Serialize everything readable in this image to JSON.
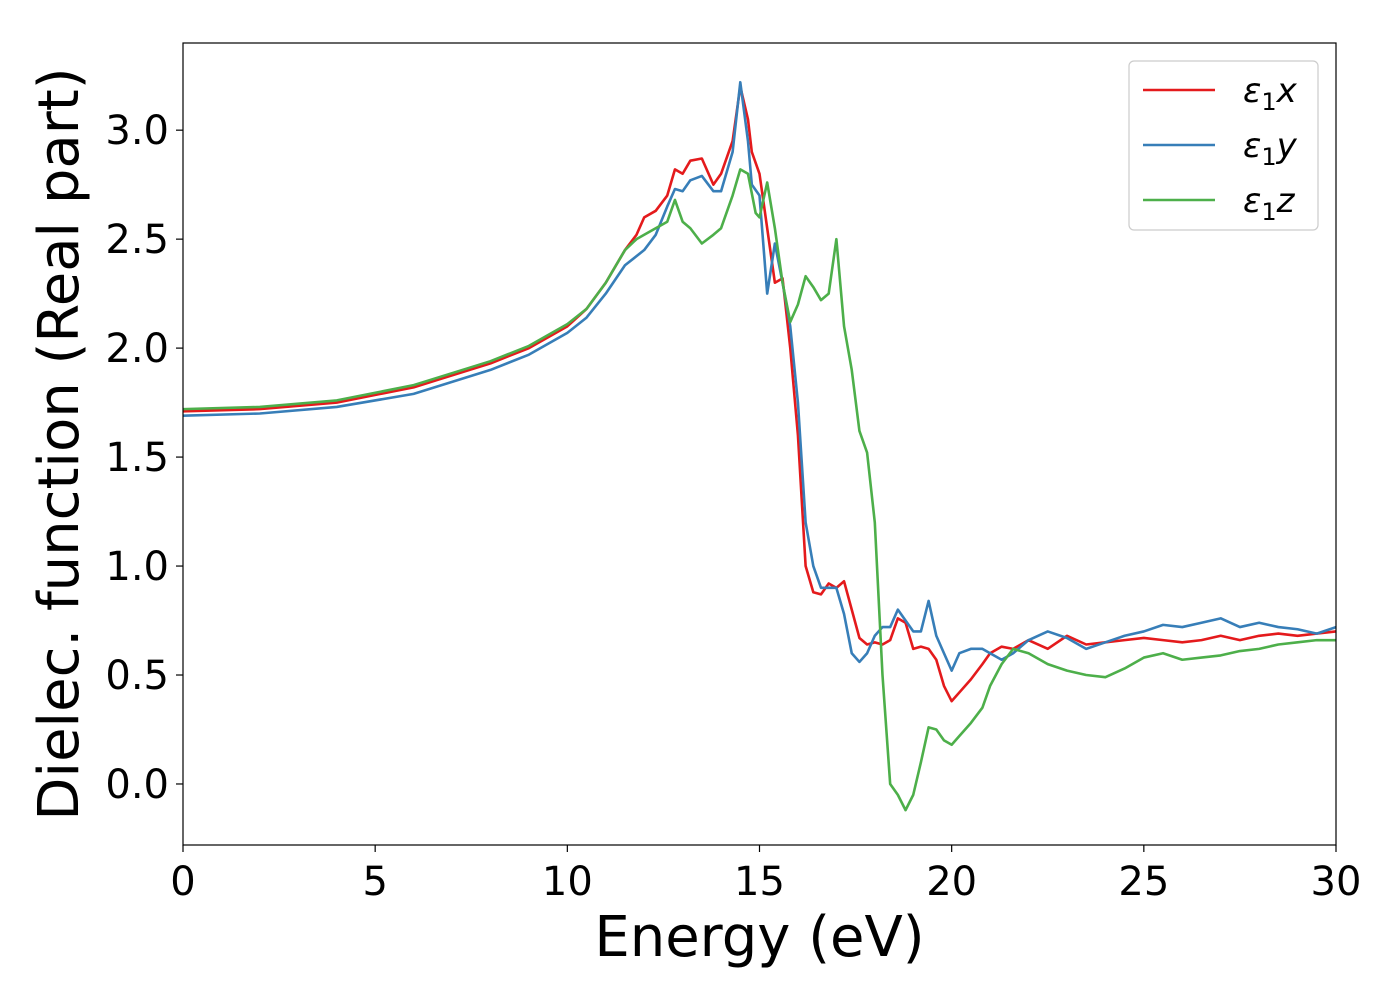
{
  "chart_data": {
    "type": "line",
    "title": "",
    "xlabel": "Energy (eV)",
    "ylabel": "Dielec. function (Real part)",
    "xlim": [
      0,
      30
    ],
    "ylim": [
      -0.28,
      3.4
    ],
    "xticks": [
      0,
      5,
      10,
      15,
      20,
      25,
      30
    ],
    "xtick_labels": [
      "0",
      "5",
      "10",
      "15",
      "20",
      "25",
      "30"
    ],
    "yticks": [
      0.0,
      0.5,
      1.0,
      1.5,
      2.0,
      2.5,
      3.0
    ],
    "ytick_labels": [
      "0.0",
      "0.5",
      "1.0",
      "1.5",
      "2.0",
      "2.5",
      "3.0"
    ],
    "grid": false,
    "legend_position": "top-right",
    "series": [
      {
        "name": "ε1x",
        "legend": {
          "base": "ε",
          "sub": "1",
          "suffix": "x"
        },
        "color": "#e41a1c",
        "x": [
          0,
          2,
          4,
          6,
          8,
          9,
          10,
          10.5,
          11,
          11.5,
          11.8,
          12.0,
          12.3,
          12.6,
          12.8,
          13.0,
          13.2,
          13.5,
          13.8,
          14.0,
          14.3,
          14.5,
          14.7,
          14.8,
          15.0,
          15.2,
          15.4,
          15.6,
          15.8,
          16.0,
          16.2,
          16.4,
          16.6,
          16.8,
          17.0,
          17.2,
          17.4,
          17.6,
          17.8,
          18.0,
          18.2,
          18.4,
          18.6,
          18.8,
          19.0,
          19.2,
          19.4,
          19.6,
          19.8,
          20.0,
          20.2,
          20.5,
          20.8,
          21.0,
          21.3,
          21.6,
          22.0,
          22.5,
          23.0,
          23.5,
          24.0,
          24.5,
          25.0,
          25.5,
          26.0,
          26.5,
          27.0,
          27.5,
          28.0,
          28.5,
          29.0,
          29.5,
          30.0
        ],
        "y": [
          1.71,
          1.72,
          1.75,
          1.82,
          1.93,
          2.0,
          2.1,
          2.18,
          2.3,
          2.45,
          2.52,
          2.6,
          2.63,
          2.7,
          2.82,
          2.8,
          2.86,
          2.87,
          2.75,
          2.8,
          2.95,
          3.2,
          3.05,
          2.9,
          2.8,
          2.55,
          2.3,
          2.32,
          2.0,
          1.6,
          1.0,
          0.88,
          0.87,
          0.92,
          0.9,
          0.93,
          0.8,
          0.67,
          0.64,
          0.65,
          0.64,
          0.66,
          0.76,
          0.74,
          0.62,
          0.63,
          0.62,
          0.57,
          0.45,
          0.38,
          0.42,
          0.48,
          0.55,
          0.6,
          0.63,
          0.62,
          0.66,
          0.62,
          0.68,
          0.64,
          0.65,
          0.66,
          0.67,
          0.66,
          0.65,
          0.66,
          0.68,
          0.66,
          0.68,
          0.69,
          0.68,
          0.69,
          0.7
        ]
      },
      {
        "name": "ε1y",
        "legend": {
          "base": "ε",
          "sub": "1",
          "suffix": "y"
        },
        "color": "#377eb8",
        "x": [
          0,
          2,
          4,
          6,
          8,
          9,
          10,
          10.5,
          11,
          11.5,
          12.0,
          12.3,
          12.6,
          12.8,
          13.0,
          13.2,
          13.5,
          13.8,
          14.0,
          14.3,
          14.5,
          14.7,
          14.8,
          15.0,
          15.2,
          15.4,
          15.6,
          15.8,
          16.0,
          16.2,
          16.4,
          16.6,
          16.8,
          17.0,
          17.2,
          17.4,
          17.6,
          17.8,
          18.0,
          18.2,
          18.4,
          18.6,
          18.8,
          19.0,
          19.2,
          19.4,
          19.6,
          19.8,
          20.0,
          20.2,
          20.5,
          20.8,
          21.0,
          21.3,
          21.6,
          22.0,
          22.5,
          23.0,
          23.5,
          24.0,
          24.5,
          25.0,
          25.5,
          26.0,
          26.5,
          27.0,
          27.5,
          28.0,
          28.5,
          29.0,
          29.5,
          30.0
        ],
        "y": [
          1.69,
          1.7,
          1.73,
          1.79,
          1.9,
          1.97,
          2.07,
          2.14,
          2.25,
          2.38,
          2.45,
          2.52,
          2.65,
          2.73,
          2.72,
          2.77,
          2.79,
          2.72,
          2.72,
          2.9,
          3.22,
          2.95,
          2.75,
          2.7,
          2.25,
          2.48,
          2.3,
          2.1,
          1.75,
          1.2,
          1.0,
          0.9,
          0.9,
          0.9,
          0.78,
          0.6,
          0.56,
          0.6,
          0.68,
          0.72,
          0.72,
          0.8,
          0.75,
          0.7,
          0.7,
          0.84,
          0.68,
          0.6,
          0.52,
          0.6,
          0.62,
          0.62,
          0.6,
          0.57,
          0.6,
          0.66,
          0.7,
          0.67,
          0.62,
          0.65,
          0.68,
          0.7,
          0.73,
          0.72,
          0.74,
          0.76,
          0.72,
          0.74,
          0.72,
          0.71,
          0.69,
          0.72
        ]
      },
      {
        "name": "ε1z",
        "legend": {
          "base": "ε",
          "sub": "1",
          "suffix": "z"
        },
        "color": "#4daf4a",
        "x": [
          0,
          2,
          4,
          6,
          8,
          9,
          10,
          10.5,
          11,
          11.5,
          11.8,
          12.0,
          12.3,
          12.6,
          12.8,
          13.0,
          13.2,
          13.5,
          13.8,
          14.0,
          14.3,
          14.5,
          14.7,
          14.9,
          15.0,
          15.2,
          15.4,
          15.6,
          15.8,
          16.0,
          16.2,
          16.4,
          16.6,
          16.8,
          17.0,
          17.2,
          17.4,
          17.6,
          17.8,
          18.0,
          18.2,
          18.4,
          18.6,
          18.8,
          19.0,
          19.2,
          19.4,
          19.6,
          19.8,
          20.0,
          20.2,
          20.5,
          20.8,
          21.0,
          21.3,
          21.6,
          22.0,
          22.5,
          23.0,
          23.5,
          24.0,
          24.5,
          25.0,
          25.5,
          26.0,
          26.5,
          27.0,
          27.5,
          28.0,
          28.5,
          29.0,
          29.5,
          30.0
        ],
        "y": [
          1.72,
          1.73,
          1.76,
          1.83,
          1.94,
          2.01,
          2.11,
          2.18,
          2.3,
          2.45,
          2.5,
          2.52,
          2.55,
          2.58,
          2.68,
          2.58,
          2.55,
          2.48,
          2.52,
          2.55,
          2.7,
          2.82,
          2.8,
          2.62,
          2.6,
          2.76,
          2.55,
          2.3,
          2.12,
          2.2,
          2.33,
          2.28,
          2.22,
          2.25,
          2.5,
          2.1,
          1.9,
          1.62,
          1.52,
          1.2,
          0.5,
          0.0,
          -0.05,
          -0.12,
          -0.05,
          0.1,
          0.26,
          0.25,
          0.2,
          0.18,
          0.22,
          0.28,
          0.35,
          0.45,
          0.55,
          0.62,
          0.6,
          0.55,
          0.52,
          0.5,
          0.49,
          0.53,
          0.58,
          0.6,
          0.57,
          0.58,
          0.59,
          0.61,
          0.62,
          0.64,
          0.65,
          0.66,
          0.66
        ]
      }
    ]
  }
}
